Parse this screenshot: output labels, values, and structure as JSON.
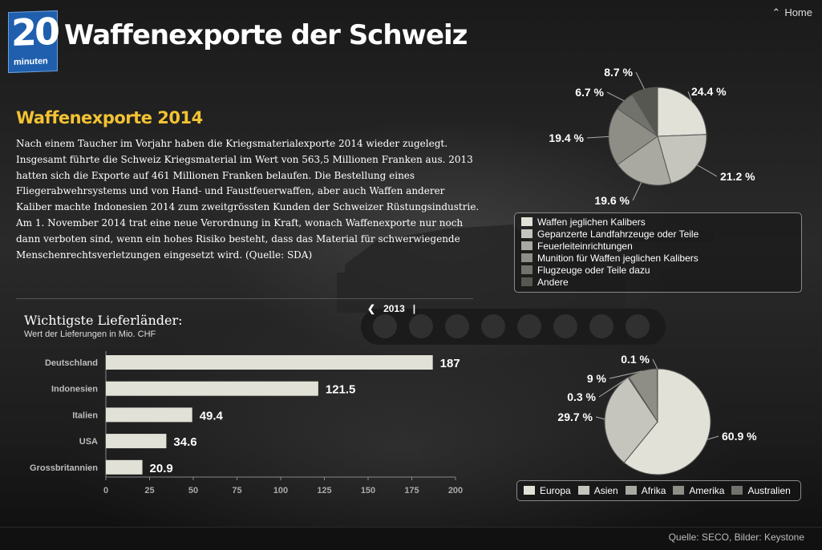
{
  "header": {
    "logo_number": "20",
    "logo_word": "minuten",
    "title": "Waffenexporte der Schweiz",
    "home_label": "Home"
  },
  "intro": {
    "heading": "Waffenexporte 2014",
    "text": "Nach einem Taucher im Vorjahr haben die Kriegsmaterialexporte 2014 wieder zugelegt. Insgesamt führte die Schweiz Kriegsmaterial im Wert von 563,5 Millionen Franken aus. 2013 hatten sich die Exporte auf 461 Millionen Franken belaufen. Die Bestellung eines Fliegerabwehrsystems und von Hand- und Faustfeuerwaffen, aber auch Waffen anderer Kaliber machte Indonesien 2014 zum zweitgrössten Kunden der Schweizer Rüstungsindustrie. Am 1. November 2014 trat eine neue Verordnung in Kraft, wonach Waffenexporte nur noch dann verboten sind, wenn ein hohes Risiko besteht, dass das Material für schwerwiegende Menschenrechtsverletzungen eingesetzt wird. (Quelle: SDA)"
  },
  "year_nav": {
    "prev_icon": "chevron-left-icon",
    "year": "2013",
    "separator": "|"
  },
  "footer": {
    "source": "Quelle: SECO, Bilder: Keystone"
  },
  "colors": {
    "accent": "#f3c233",
    "logo_blue": "#1f5fae",
    "bar": "#e1e1d7"
  },
  "chart_data": [
    {
      "type": "bar",
      "orientation": "horizontal",
      "title": "Wichtigste Lieferländer:",
      "subtitle": "Wert der Lieferungen in Mio. CHF",
      "categories": [
        "Deutschland",
        "Indonesien",
        "Italien",
        "USA",
        "Grossbritannien"
      ],
      "values": [
        187,
        121.5,
        49.4,
        34.6,
        20.9
      ],
      "value_labels": [
        "187",
        "121.5",
        "49.4",
        "34.6",
        "20.9"
      ],
      "xlim": [
        0,
        200
      ],
      "xticks": [
        "0",
        "25",
        "50",
        "75",
        "100",
        "125",
        "150",
        "175",
        "200"
      ],
      "grid": false
    },
    {
      "type": "pie",
      "labels": [
        "Waffen jeglichen Kalibers",
        "Gepanzerte Landfahrzeuge oder Teile",
        "Feuerleiteinrichtungen",
        "Munition für Waffen jeglichen Kalibers",
        "Flugzeuge oder Teile dazu",
        "Andere"
      ],
      "values": [
        24.4,
        21.2,
        19.6,
        19.4,
        6.7,
        8.7
      ],
      "value_labels": [
        "24.4 %",
        "21.2 %",
        "19.6 %",
        "19.4 %",
        "6.7 %",
        "8.7 %"
      ],
      "colors": [
        "#e1e1d7",
        "#c5c5bd",
        "#a9a9a2",
        "#8e8e87",
        "#72726c",
        "#575752"
      ],
      "legend_position": "bottom"
    },
    {
      "type": "pie",
      "labels": [
        "Europa",
        "Asien",
        "Afrika",
        "Amerika",
        "Australien"
      ],
      "values": [
        60.9,
        29.7,
        0.3,
        9,
        0.1
      ],
      "value_labels": [
        "60.9 %",
        "29.7 %",
        "0.3 %",
        "9 %",
        "0.1 %"
      ],
      "colors": [
        "#e1e1d7",
        "#c5c5bd",
        "#a9a9a2",
        "#8e8e87",
        "#72726c"
      ],
      "legend_position": "bottom"
    }
  ]
}
